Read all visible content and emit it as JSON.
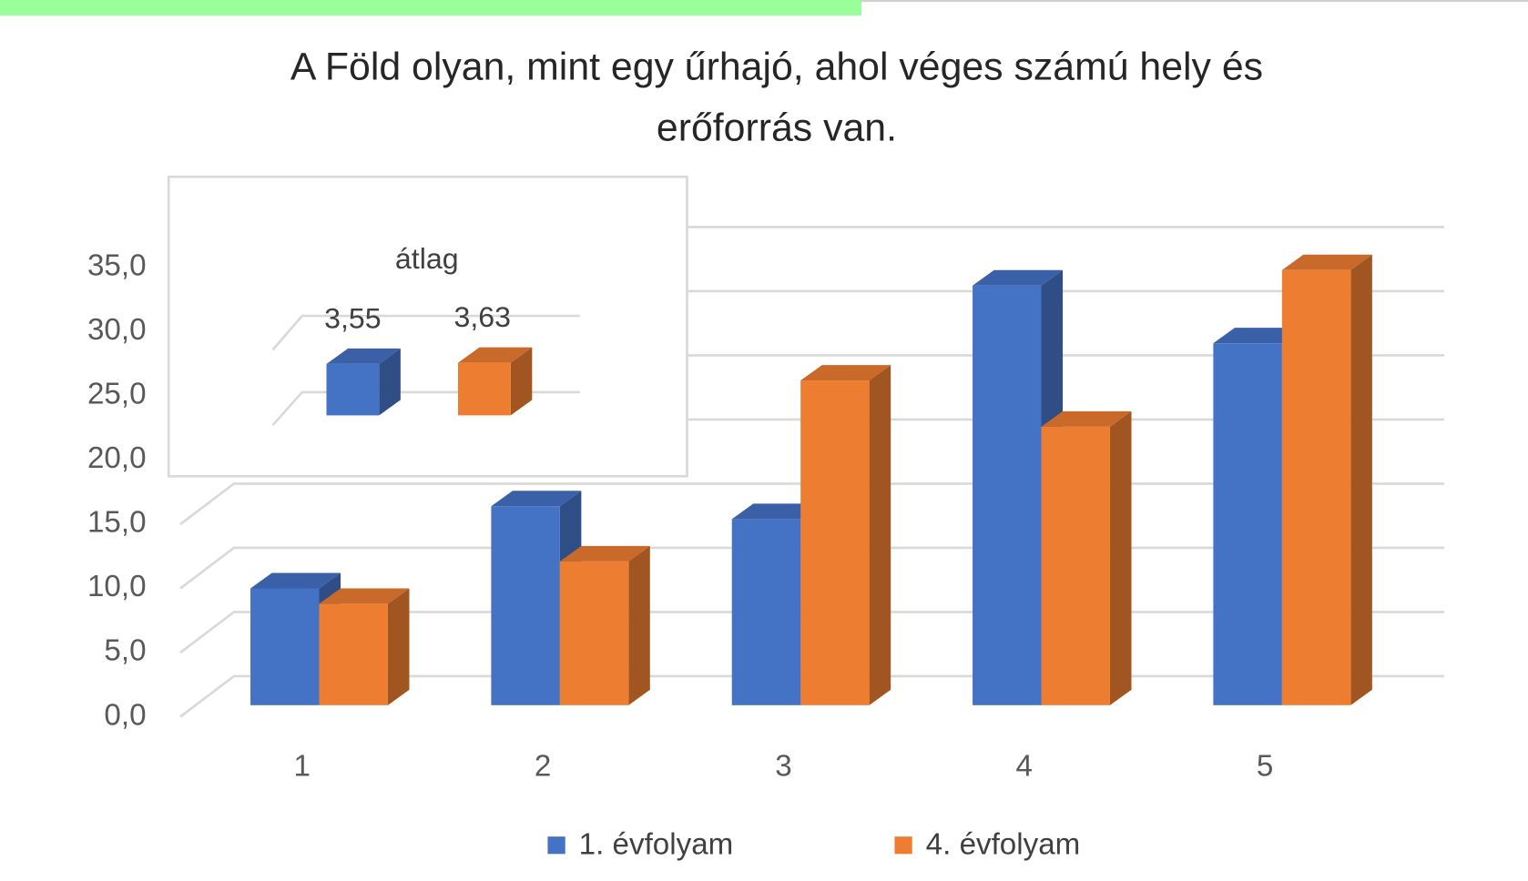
{
  "chart_data": {
    "type": "bar3d",
    "title": [
      "A Föld olyan, mint egy űrhajó, ahol véges számú hely és",
      "erőforrás van."
    ],
    "categories": [
      "1",
      "2",
      "3",
      "4",
      "5"
    ],
    "series": [
      {
        "name": "1. évfolyam",
        "color": "#4472c4",
        "values": [
          9.1,
          15.5,
          14.5,
          32.7,
          28.2
        ]
      },
      {
        "name": "4. évfolyam",
        "color": "#ed7d31",
        "values": [
          7.9,
          11.2,
          25.3,
          21.7,
          33.9
        ]
      }
    ],
    "ylim": [
      0,
      35
    ],
    "yticks": [
      {
        "value": 0,
        "label": "0,0"
      },
      {
        "value": 5,
        "label": "5,0"
      },
      {
        "value": 10,
        "label": "10,0"
      },
      {
        "value": 15,
        "label": "15,0"
      },
      {
        "value": 20,
        "label": "20,0"
      },
      {
        "value": 25,
        "label": "25,0"
      },
      {
        "value": 30,
        "label": "30,0"
      },
      {
        "value": 35,
        "label": "35,0"
      }
    ],
    "grid": true,
    "legend": "bottom",
    "inset": {
      "title": "átlag",
      "values": [
        3.55,
        3.63
      ],
      "value_labels": [
        "3,55",
        "3,63"
      ]
    }
  }
}
